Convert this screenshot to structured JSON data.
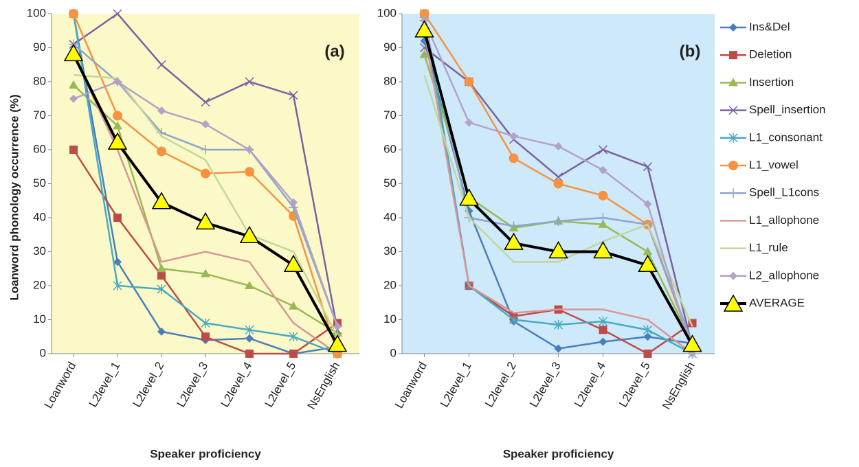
{
  "chart_data": [
    {
      "type": "line",
      "annotation": "(a)",
      "y_label": "Loanword phonology occurrence (%)",
      "x_label": "Speaker proficiency",
      "background": "#fbf9c8",
      "categories": [
        "Loanword",
        "L2level_1",
        "L2level_2",
        "L2level_3",
        "L2level_4",
        "L2level_5",
        "NsEnglish"
      ],
      "ylim": [
        0,
        100
      ],
      "yticks": [
        0,
        10,
        20,
        30,
        40,
        50,
        60,
        70,
        80,
        90,
        100
      ],
      "series": [
        {
          "color": "#4a7ebb",
          "marker": "diamond",
          "values": [
            100,
            27,
            6.5,
            4,
            4.5,
            0,
            2
          ]
        },
        {
          "color": "#be4b48",
          "marker": "square",
          "values": [
            60,
            40,
            23,
            5,
            0,
            0,
            9
          ]
        },
        {
          "color": "#98b954",
          "marker": "triangle",
          "values": [
            79,
            67,
            25,
            23.5,
            20,
            14,
            6
          ]
        },
        {
          "color": "#7d60a0",
          "marker": "x",
          "values": [
            91,
            100,
            85,
            74,
            80,
            76,
            7
          ]
        },
        {
          "color": "#46aac5",
          "marker": "star",
          "values": [
            100,
            20,
            19,
            9,
            7,
            5,
            0
          ]
        },
        {
          "color": "#f69240",
          "marker": "circle",
          "values": [
            100,
            70,
            59.5,
            53,
            53.5,
            40.5,
            0
          ]
        },
        {
          "color": "#8ea5cb",
          "marker": "plus",
          "values": [
            91,
            80,
            65,
            60,
            60,
            43,
            8
          ]
        },
        {
          "color": "#d99694",
          "marker": "none",
          "values": [
            88,
            60,
            27,
            30,
            27,
            9,
            0
          ]
        },
        {
          "color": "#c3d69b",
          "marker": "none",
          "values": [
            82,
            81,
            64,
            57,
            35,
            30,
            5
          ]
        },
        {
          "color": "#b3a2c7",
          "marker": "diamond",
          "values": [
            75,
            80,
            71.5,
            67.5,
            60,
            44.5,
            8
          ]
        },
        {
          "color": "#000000",
          "marker": "big-triangle",
          "values": [
            88,
            62,
            44.5,
            38.5,
            34.5,
            26,
            2.5
          ]
        }
      ]
    },
    {
      "type": "line",
      "annotation": "(b)",
      "x_label": "Speaker proficiency",
      "background": "#cde9fa",
      "legend": "right",
      "categories": [
        "Loanword",
        "L2level_1",
        "L2level_2",
        "L2level_3",
        "L2level_4",
        "L2level_5",
        "NsEnglish"
      ],
      "ylim": [
        0,
        100
      ],
      "yticks": [
        0,
        10,
        20,
        30,
        40,
        50,
        60,
        70,
        80,
        90,
        100
      ],
      "series": [
        {
          "name": "Ins&Del",
          "color": "#4a7ebb",
          "marker": "diamond",
          "values": [
            92,
            42,
            9.5,
            1.5,
            3.5,
            5,
            3
          ]
        },
        {
          "name": "Deletion",
          "color": "#be4b48",
          "marker": "square",
          "values": [
            100,
            20,
            11,
            13,
            7,
            0,
            9
          ]
        },
        {
          "name": "Insertion",
          "color": "#98b954",
          "marker": "triangle",
          "values": [
            88,
            46,
            37,
            39,
            38,
            30,
            3
          ]
        },
        {
          "name": "Spell_insertion",
          "color": "#7d60a0",
          "marker": "x",
          "values": [
            90,
            80,
            63,
            52,
            60,
            55,
            2
          ]
        },
        {
          "name": "L1_consonant",
          "color": "#46aac5",
          "marker": "star",
          "values": [
            100,
            20,
            10,
            8.5,
            9.5,
            7,
            0
          ]
        },
        {
          "name": "L1_vowel",
          "color": "#f69240",
          "marker": "circle",
          "values": [
            100,
            80,
            57.5,
            50,
            46.5,
            38,
            2
          ]
        },
        {
          "name": "Spell_L1cons",
          "color": "#8ea5cb",
          "marker": "plus",
          "values": [
            98,
            40,
            37.5,
            39,
            40,
            38,
            3
          ]
        },
        {
          "name": "L1_allophone",
          "color": "#d99694",
          "marker": "none",
          "values": [
            95,
            20,
            12,
            13,
            13,
            10,
            0
          ]
        },
        {
          "name": "L1_rule",
          "color": "#c3d69b",
          "marker": "none",
          "values": [
            82,
            40,
            27,
            27,
            33,
            38,
            8
          ]
        },
        {
          "name": "L2_allophone",
          "color": "#b3a2c7",
          "marker": "diamond",
          "values": [
            98,
            68,
            64,
            61,
            54,
            44,
            0
          ]
        },
        {
          "name": "AVERAGE",
          "color": "#000000",
          "marker": "big-triangle",
          "values": [
            95,
            45.5,
            32.5,
            30,
            30,
            26,
            2.5
          ]
        }
      ]
    }
  ]
}
